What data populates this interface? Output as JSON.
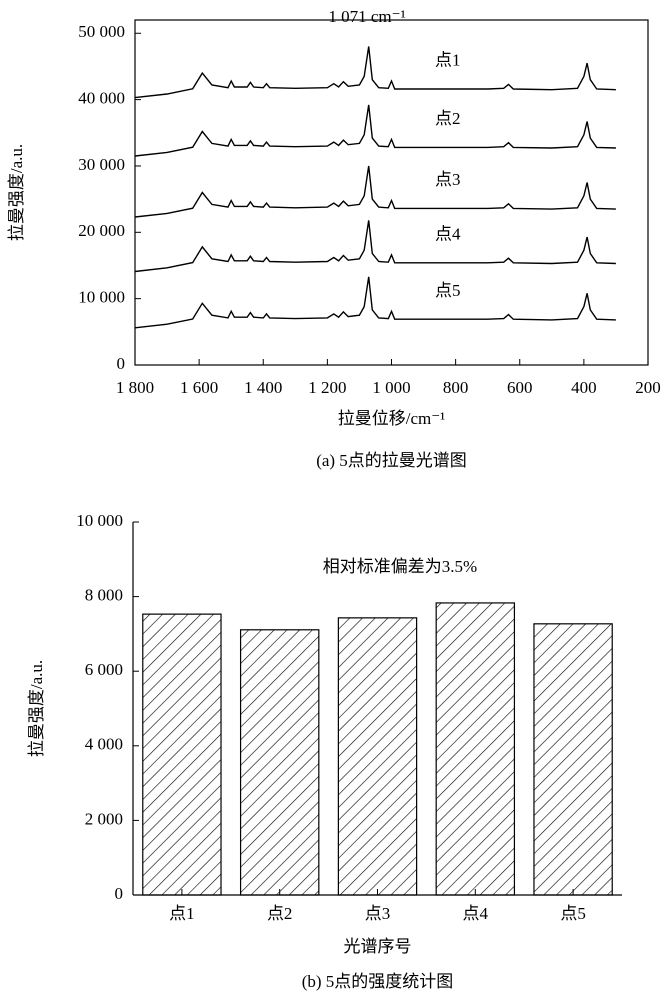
{
  "chart_data": [
    {
      "type": "line",
      "annotation": "1 071 cm⁻¹",
      "x_label": "拉曼位移/cm⁻¹",
      "y_label": "拉曼强度/a.u.",
      "caption": "(a) 5点的拉曼光谱图",
      "xlim": [
        1800,
        200
      ],
      "xticks": [
        {
          "value": 1800,
          "label": "1 800"
        },
        {
          "value": 1600,
          "label": "1 600"
        },
        {
          "value": 1400,
          "label": "1 400"
        },
        {
          "value": 1200,
          "label": "1 200"
        },
        {
          "value": 1000,
          "label": "1 000"
        },
        800,
        600,
        400,
        200
      ],
      "ylim": [
        0,
        52000
      ],
      "yticks": [
        0,
        {
          "value": 10000,
          "label": "10 000"
        },
        {
          "value": 20000,
          "label": "20 000"
        },
        {
          "value": 30000,
          "label": "30 000"
        },
        {
          "value": 40000,
          "label": "40 000"
        },
        {
          "value": 50000,
          "label": "50 000"
        }
      ],
      "x": [
        1800,
        1700,
        1620,
        1590,
        1560,
        1510,
        1500,
        1490,
        1450,
        1440,
        1430,
        1400,
        1390,
        1380,
        1300,
        1200,
        1180,
        1165,
        1150,
        1135,
        1100,
        1085,
        1071,
        1060,
        1040,
        1010,
        1000,
        990,
        900,
        800,
        700,
        650,
        635,
        620,
        500,
        420,
        400,
        390,
        380,
        360,
        300
      ],
      "series": [
        {
          "name": "点1",
          "color": "#000000",
          "values": [
            40300,
            40850,
            41630,
            44000,
            42200,
            41800,
            42800,
            41900,
            41900,
            42600,
            41900,
            41800,
            42400,
            41800,
            41700,
            41800,
            42400,
            41900,
            42700,
            42000,
            42200,
            43500,
            48000,
            43000,
            41800,
            41700,
            42800,
            41600,
            41600,
            41600,
            41600,
            41700,
            42300,
            41600,
            41500,
            41700,
            43500,
            45500,
            43000,
            41600,
            41500
          ]
        },
        {
          "name": "点2",
          "color": "#000000",
          "values": [
            31500,
            32050,
            32830,
            35200,
            33400,
            33000,
            34000,
            33100,
            33100,
            33800,
            33100,
            33000,
            33600,
            33000,
            32900,
            33000,
            33600,
            33100,
            33900,
            33200,
            33400,
            34700,
            39200,
            34200,
            33000,
            32900,
            34000,
            32800,
            32800,
            32800,
            32800,
            32900,
            33500,
            32800,
            32700,
            32900,
            34700,
            36700,
            34200,
            32800,
            32700
          ]
        },
        {
          "name": "点3",
          "color": "#000000",
          "values": [
            22300,
            22850,
            23630,
            26000,
            24200,
            23800,
            24800,
            23900,
            23900,
            24600,
            23900,
            23800,
            24400,
            23800,
            23700,
            23800,
            24400,
            23900,
            24700,
            24000,
            24200,
            25500,
            30000,
            25000,
            23800,
            23700,
            24800,
            23600,
            23600,
            23600,
            23600,
            23700,
            24300,
            23600,
            23500,
            23700,
            25500,
            27500,
            25000,
            23600,
            23500
          ]
        },
        {
          "name": "点4",
          "color": "#000000",
          "values": [
            14100,
            14650,
            15430,
            17800,
            16000,
            15600,
            16600,
            15700,
            15700,
            16400,
            15700,
            15600,
            16200,
            15600,
            15500,
            15600,
            16200,
            15700,
            16500,
            15800,
            16000,
            17300,
            21800,
            16800,
            15600,
            15500,
            16600,
            15400,
            15400,
            15400,
            15400,
            15500,
            16100,
            15400,
            15300,
            15500,
            17300,
            19300,
            16800,
            15400,
            15300
          ]
        },
        {
          "name": "点5",
          "color": "#000000",
          "values": [
            5600,
            6150,
            6930,
            9300,
            7500,
            7100,
            8100,
            7200,
            7200,
            7900,
            7200,
            7100,
            7700,
            7100,
            7000,
            7100,
            7700,
            7200,
            8000,
            7300,
            7500,
            8800,
            13300,
            8300,
            7100,
            7000,
            8100,
            6900,
            6900,
            6900,
            6900,
            7000,
            7600,
            6900,
            6800,
            7000,
            8800,
            10800,
            8300,
            6900,
            6800
          ]
        }
      ]
    },
    {
      "type": "bar",
      "annotation": "相对标准偏差为3.5%",
      "x_label": "光谱序号",
      "y_label": "拉曼强度/a.u.",
      "caption": "(b) 5点的强度统计图",
      "categories": [
        "点1",
        "点2",
        "点3",
        "点4",
        "点5"
      ],
      "values": [
        7530,
        7110,
        7430,
        7830,
        7270
      ],
      "color": "#000000",
      "ylim": [
        0,
        10000
      ],
      "yticks": [
        0,
        {
          "value": 2000,
          "label": "2 000"
        },
        {
          "value": 4000,
          "label": "4 000"
        },
        {
          "value": 6000,
          "label": "6 000"
        },
        {
          "value": 8000,
          "label": "8 000"
        },
        {
          "value": 10000,
          "label": "10 000"
        }
      ]
    }
  ]
}
